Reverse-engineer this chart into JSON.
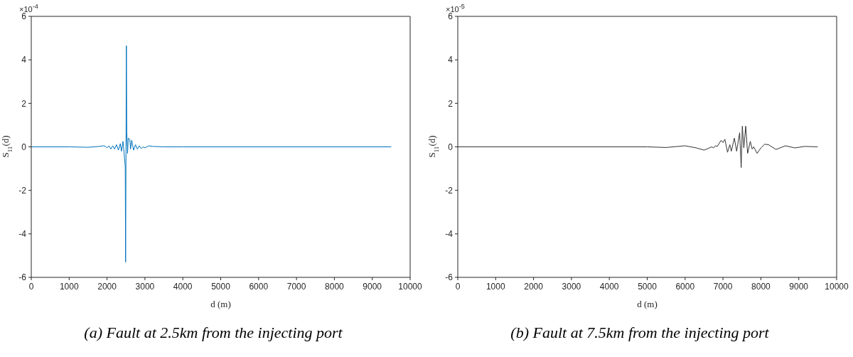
{
  "chart_data": [
    {
      "type": "line",
      "title": "(a) Fault at 2.5km from the injecting port",
      "xlabel": "d (m)",
      "ylabel": "S$_{11}$(d)",
      "annotations": [
        "×10$^{-4}$"
      ],
      "xlim": [
        0,
        10000
      ],
      "xticks": [
        0,
        1000,
        2000,
        3000,
        4000,
        5000,
        6000,
        7000,
        8000,
        9000,
        10000
      ],
      "ylim": [
        -6,
        6
      ],
      "yticks": [
        -6,
        -4,
        -2,
        0,
        2,
        4,
        6
      ],
      "series": [
        {
          "color": "#0072bd",
          "x": [
            0,
            1000,
            1500,
            1800,
            1900,
            1950,
            2000,
            2050,
            2100,
            2150,
            2200,
            2250,
            2300,
            2350,
            2380,
            2420,
            2450,
            2480,
            2490,
            2500,
            2510,
            2520,
            2540,
            2560,
            2600,
            2620,
            2650,
            2700,
            2750,
            2800,
            2850,
            2900,
            2950,
            3000,
            3100,
            3200,
            3500,
            4000,
            9500
          ],
          "values": [
            0,
            0,
            -0.02,
            0.02,
            0.05,
            0.03,
            -0.05,
            0.05,
            -0.1,
            0.05,
            -0.1,
            0.1,
            -0.15,
            0.15,
            -0.2,
            0.25,
            -0.3,
            -0.9,
            -5.3,
            0,
            4.65,
            0.7,
            -0.3,
            0.4,
            0.35,
            -0.1,
            0.3,
            -0.15,
            0.1,
            -0.1,
            0.05,
            -0.08,
            0,
            -0.05,
            0.05,
            0.02,
            0,
            0,
            0
          ]
        }
      ]
    },
    {
      "type": "line",
      "title": "(b) Fault at 7.5km from the injecting port",
      "xlabel": "d (m)",
      "ylabel": "S$_{11}$(d)",
      "annotations": [
        "×10$^{-5}$"
      ],
      "xlim": [
        0,
        10000
      ],
      "xticks": [
        0,
        1000,
        2000,
        3000,
        4000,
        5000,
        6000,
        7000,
        8000,
        9000,
        10000
      ],
      "ylim": [
        -6,
        6
      ],
      "yticks": [
        -6,
        -4,
        -2,
        0,
        2,
        4,
        6
      ],
      "series": [
        {
          "color": "#333333",
          "x": [
            0,
            5000,
            5500,
            6000,
            6300,
            6500,
            6600,
            6700,
            6750,
            6800,
            6850,
            6950,
            7000,
            7050,
            7120,
            7180,
            7220,
            7300,
            7360,
            7440,
            7480,
            7510,
            7550,
            7600,
            7650,
            7720,
            7770,
            7810,
            7900,
            8000,
            8100,
            8200,
            8400,
            8650,
            8900,
            9150,
            9500
          ],
          "values": [
            0,
            0,
            -0.03,
            0.05,
            -0.05,
            -0.15,
            -0.08,
            0,
            -0.05,
            0.05,
            0.02,
            0.3,
            0.2,
            0.35,
            -0.25,
            0.1,
            -0.2,
            0.4,
            -0.2,
            0.65,
            -0.95,
            0.95,
            -0.05,
            0.95,
            -0.3,
            0.25,
            -0.1,
            0,
            -0.3,
            -0.05,
            0.12,
            0.1,
            -0.12,
            0.05,
            -0.05,
            0.02,
            0
          ]
        }
      ]
    }
  ]
}
